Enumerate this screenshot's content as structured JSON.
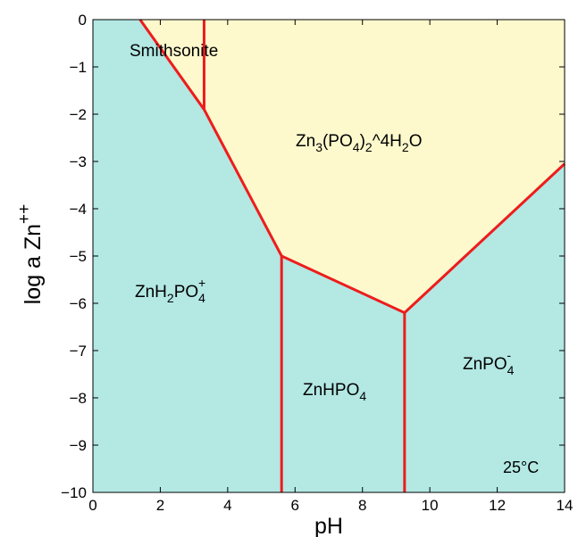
{
  "chart_data": {
    "type": "area",
    "title": "",
    "xlabel": "pH",
    "ylabel": "log a Zn++",
    "xlim": [
      0,
      14
    ],
    "ylim": [
      -10,
      0
    ],
    "x_ticks": [
      0,
      2,
      4,
      6,
      8,
      10,
      12,
      14
    ],
    "y_ticks": [
      0,
      -1,
      -2,
      -3,
      -4,
      -5,
      -6,
      -7,
      -8,
      -9,
      -10
    ],
    "grid": false,
    "temperature_label": "25°C",
    "colors": {
      "aqueous_field": "#b3e8e3",
      "solid_field": "#fdf9cc",
      "boundary": "#ee1c1c"
    },
    "fields": [
      {
        "name": "Smithsonite",
        "kind": "solid",
        "label_at": [
          3.0,
          -0.6
        ]
      },
      {
        "name": "Zn3(PO4)2^4H2O",
        "kind": "solid",
        "label_at": [
          8.9,
          -2.6
        ]
      },
      {
        "name": "ZnH2PO4+",
        "kind": "aqueous",
        "label_at": [
          2.5,
          -5.8
        ]
      },
      {
        "name": "ZnHPO4",
        "kind": "aqueous",
        "label_at": [
          7.4,
          -7.8
        ]
      },
      {
        "name": "ZnPO4-",
        "kind": "aqueous",
        "label_at": [
          11.4,
          -7.3
        ]
      }
    ],
    "solid_region": [
      [
        1.4,
        0
      ],
      [
        14,
        0
      ],
      [
        14,
        -3.05
      ],
      [
        9.25,
        -6.2
      ],
      [
        5.6,
        -5.0
      ],
      [
        3.3,
        -1.9
      ]
    ],
    "boundaries": [
      {
        "points": [
          [
            1.4,
            0
          ],
          [
            3.3,
            -1.9
          ],
          [
            5.6,
            -5.0
          ],
          [
            9.25,
            -6.2
          ],
          [
            14,
            -3.05
          ]
        ]
      },
      {
        "points": [
          [
            3.3,
            0
          ],
          [
            3.3,
            -1.9
          ]
        ]
      },
      {
        "points": [
          [
            5.6,
            -5.0
          ],
          [
            5.6,
            -10
          ]
        ]
      },
      {
        "points": [
          [
            9.25,
            -6.2
          ],
          [
            9.25,
            -10
          ]
        ]
      }
    ]
  }
}
